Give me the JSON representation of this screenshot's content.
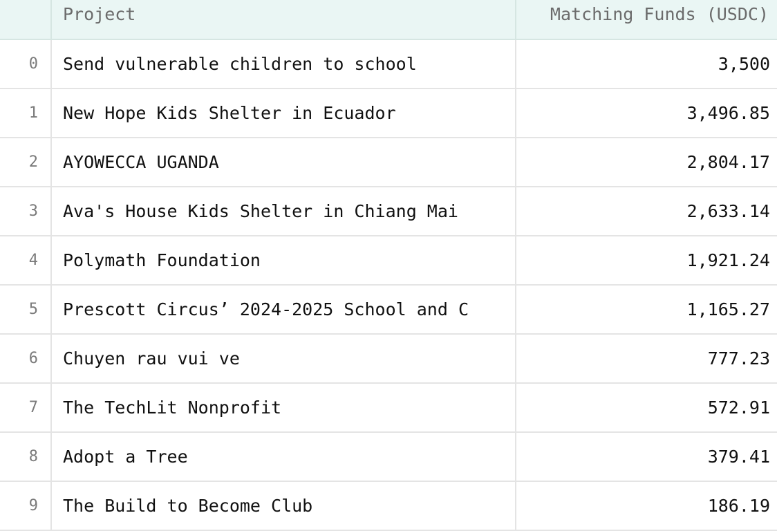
{
  "table": {
    "columns": [
      "",
      "Project",
      "Matching Funds (USDC)"
    ],
    "rows": [
      {
        "index": "0",
        "project": "Send vulnerable children to school",
        "funds": "3,500"
      },
      {
        "index": "1",
        "project": "New Hope Kids Shelter in Ecuador",
        "funds": "3,496.85"
      },
      {
        "index": "2",
        "project": "AYOWECCA UGANDA",
        "funds": "2,804.17"
      },
      {
        "index": "3",
        "project": "Ava's House Kids Shelter in Chiang Mai",
        "funds": "2,633.14"
      },
      {
        "index": "4",
        "project": "Polymath Foundation",
        "funds": "1,921.24"
      },
      {
        "index": "5",
        "project": "Prescott Circus’ 2024-2025 School and C",
        "funds": "1,165.27"
      },
      {
        "index": "6",
        "project": "Chuyen rau vui ve",
        "funds": "777.23"
      },
      {
        "index": "7",
        "project": "The TechLit Nonprofit",
        "funds": "572.91"
      },
      {
        "index": "8",
        "project": "Adopt a Tree",
        "funds": "379.41"
      },
      {
        "index": "9",
        "project": "The Build to Become Club",
        "funds": "186.19"
      }
    ]
  },
  "colors": {
    "header_bg": "#eaf6f4",
    "grid": "#e4e4e4"
  }
}
